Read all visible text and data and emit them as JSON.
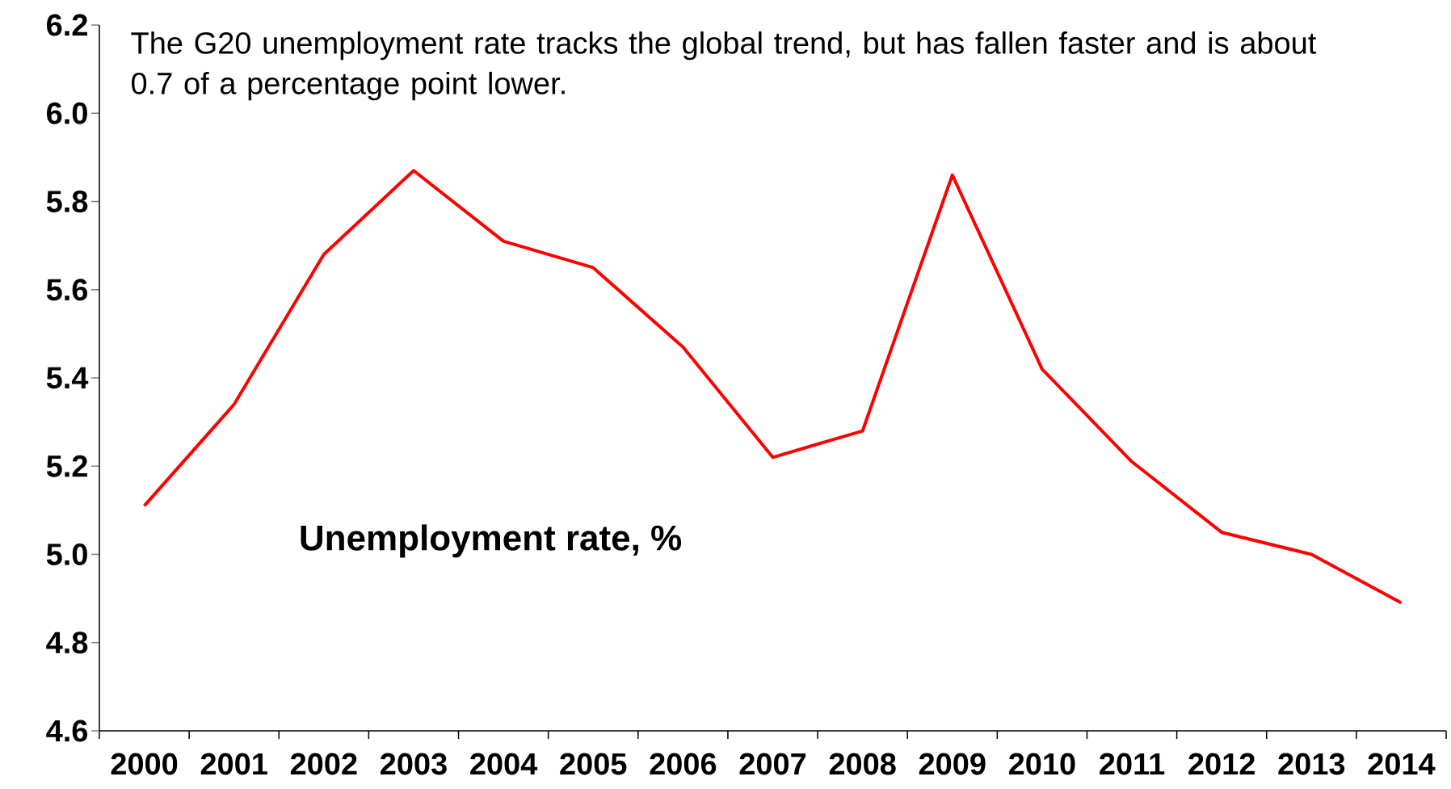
{
  "chart_data": {
    "type": "line",
    "categories": [
      "2000",
      "2001",
      "2002",
      "2003",
      "2004",
      "2005",
      "2006",
      "2007",
      "2008",
      "2009",
      "2010",
      "2011",
      "2012",
      "2013",
      "2014"
    ],
    "series": [
      {
        "color": "#ff0000",
        "values": [
          5.11,
          5.34,
          5.68,
          5.87,
          5.71,
          5.65,
          5.47,
          5.22,
          5.28,
          5.86,
          5.42,
          5.21,
          5.05,
          5.0,
          4.89
        ]
      }
    ],
    "ylim": [
      4.6,
      6.2
    ],
    "yticks": [
      4.6,
      4.8,
      {
        "value": 5.0,
        "label": "5.0"
      },
      5.2,
      5.4,
      5.6,
      5.8,
      {
        "value": 6.0,
        "label": "6.0"
      },
      6.2
    ],
    "annotations": [
      "The G20 unemployment rate tracks the global trend, but has fallen faster and is about 0.7 of a percentage point lower.",
      "Unemployment rate, %"
    ],
    "marker": "none",
    "line_style": "solid",
    "grid": false
  }
}
